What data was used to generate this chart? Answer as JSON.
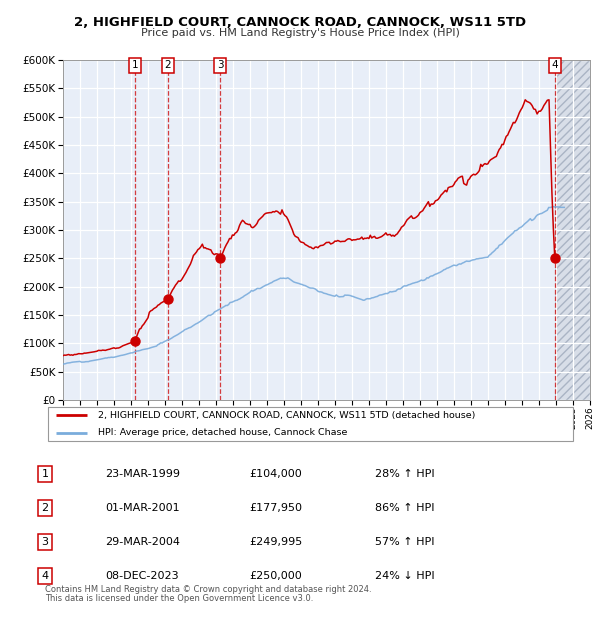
{
  "title1": "2, HIGHFIELD COURT, CANNOCK ROAD, CANNOCK, WS11 5TD",
  "title2": "Price paid vs. HM Land Registry's House Price Index (HPI)",
  "transactions": [
    {
      "num": 1,
      "date": "23-MAR-1999",
      "date_x": 1999.22,
      "price": 104000,
      "pct": "28%",
      "dir": "↑"
    },
    {
      "num": 2,
      "date": "01-MAR-2001",
      "date_x": 2001.17,
      "price": 177950,
      "pct": "86%",
      "dir": "↑"
    },
    {
      "num": 3,
      "date": "29-MAR-2004",
      "date_x": 2004.24,
      "price": 249995,
      "pct": "57%",
      "dir": "↑"
    },
    {
      "num": 4,
      "date": "08-DEC-2023",
      "date_x": 2023.94,
      "price": 250000,
      "pct": "24%",
      "dir": "↓"
    }
  ],
  "legend_line1": "2, HIGHFIELD COURT, CANNOCK ROAD, CANNOCK, WS11 5TD (detached house)",
  "legend_line2": "HPI: Average price, detached house, Cannock Chase",
  "footer1": "Contains HM Land Registry data © Crown copyright and database right 2024.",
  "footer2": "This data is licensed under the Open Government Licence v3.0.",
  "xmin": 1995.0,
  "xmax": 2026.0,
  "ymin": 0,
  "ymax": 600000,
  "plot_bg": "#e8eef8",
  "hatch_bg": "#d8dee8",
  "red_color": "#cc0000",
  "blue_color": "#7aacdc",
  "grid_color": "#ffffff",
  "title_fontsize": 9.5,
  "subtitle_fontsize": 8.5
}
